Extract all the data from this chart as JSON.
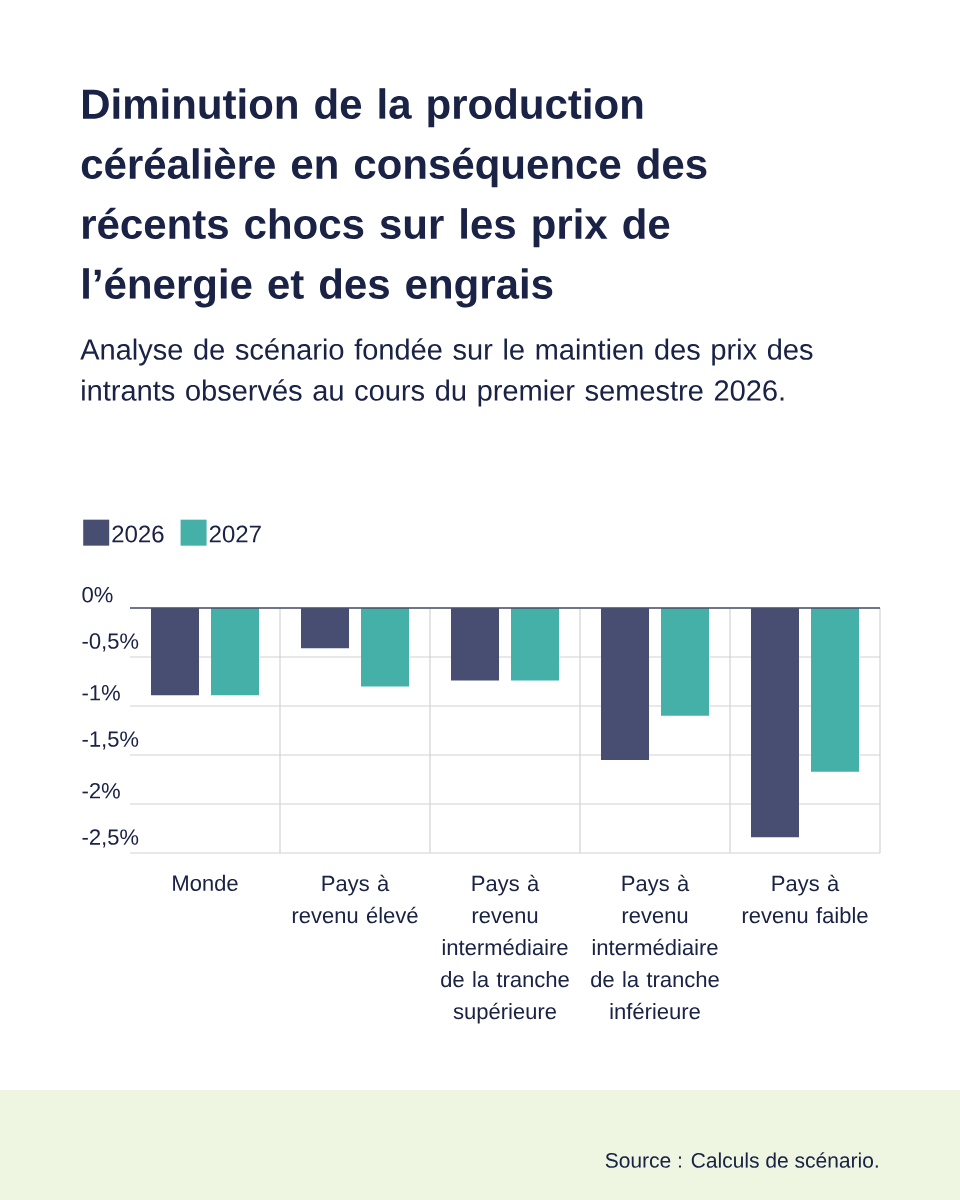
{
  "chart_data": {
    "type": "bar",
    "title": "Diminution de la production céréalière en conséquence des récents chocs sur les prix de l’énergie et des engrais",
    "subtitle": "Analyse de scénario fondée sur le maintien des prix des intrants observés au cours du premier semestre 2026.",
    "categories": [
      "Monde",
      "Pays à revenu élevé",
      "Pays à revenu intermédiaire de la tranche supérieure",
      "Pays à revenu intermédiaire de la tranche inférieure",
      "Pays à revenu faible"
    ],
    "series": [
      {
        "name": "2026",
        "color": "#474e72",
        "values": [
          -0.89,
          -0.41,
          -0.74,
          -1.55,
          -2.34
        ]
      },
      {
        "name": "2027",
        "color": "#45b0a8",
        "values": [
          -0.89,
          -0.8,
          -0.74,
          -1.1,
          -1.67
        ]
      }
    ],
    "ylim": [
      -2.5,
      0
    ],
    "yticks": [
      {
        "value": 0,
        "label": "0%"
      },
      {
        "value": -0.5,
        "label": "-0,5%"
      },
      {
        "value": -1,
        "label": "-1%"
      },
      {
        "value": -1.5,
        "label": "-1,5%"
      },
      {
        "value": -2,
        "label": "-2%"
      },
      {
        "value": -2.5,
        "label": "-2,5%"
      }
    ],
    "grid": true,
    "legend": "top left",
    "annotations": [
      "Source : Calculs de scénario."
    ]
  }
}
